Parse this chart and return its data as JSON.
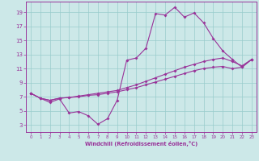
{
  "background_color": "#cce8e8",
  "line_color": "#993399",
  "grid_color": "#99cccc",
  "xlabel": "Windchill (Refroidissement éolien,°C)",
  "xlim": [
    -0.5,
    23.5
  ],
  "ylim": [
    2.0,
    20.5
  ],
  "xticks": [
    0,
    1,
    2,
    3,
    4,
    5,
    6,
    7,
    8,
    9,
    10,
    11,
    12,
    13,
    14,
    15,
    16,
    17,
    18,
    19,
    20,
    21,
    22,
    23
  ],
  "yticks": [
    3,
    5,
    7,
    9,
    11,
    13,
    15,
    17,
    19
  ],
  "curve1_x": [
    0,
    1,
    2,
    3,
    4,
    5,
    6,
    7,
    8,
    9,
    10,
    11,
    12,
    13,
    14,
    15,
    16,
    17,
    18,
    19,
    20,
    21,
    22,
    23
  ],
  "curve1_y": [
    7.5,
    6.8,
    6.2,
    6.7,
    4.7,
    4.9,
    4.3,
    3.1,
    3.9,
    6.5,
    12.2,
    12.5,
    13.9,
    18.8,
    18.6,
    19.7,
    18.3,
    18.9,
    17.5,
    15.3,
    13.5,
    12.3,
    11.2,
    12.3
  ],
  "curve2_x": [
    0,
    1,
    2,
    3,
    4,
    5,
    6,
    7,
    8,
    9,
    10,
    11,
    12,
    13,
    14,
    15,
    16,
    17,
    18,
    19,
    20,
    21,
    22,
    23
  ],
  "curve2_y": [
    7.5,
    6.8,
    6.5,
    6.8,
    6.9,
    7.1,
    7.3,
    7.5,
    7.7,
    7.9,
    8.3,
    8.7,
    9.2,
    9.7,
    10.2,
    10.7,
    11.2,
    11.6,
    12.0,
    12.3,
    12.5,
    12.0,
    11.4,
    12.3
  ],
  "curve3_x": [
    0,
    1,
    2,
    3,
    4,
    5,
    6,
    7,
    8,
    9,
    10,
    11,
    12,
    13,
    14,
    15,
    16,
    17,
    18,
    19,
    20,
    21,
    22,
    23
  ],
  "curve3_y": [
    7.5,
    6.8,
    6.5,
    6.8,
    6.9,
    7.0,
    7.2,
    7.3,
    7.5,
    7.7,
    8.0,
    8.3,
    8.7,
    9.1,
    9.5,
    9.9,
    10.3,
    10.7,
    11.0,
    11.2,
    11.3,
    11.0,
    11.2,
    12.3
  ]
}
